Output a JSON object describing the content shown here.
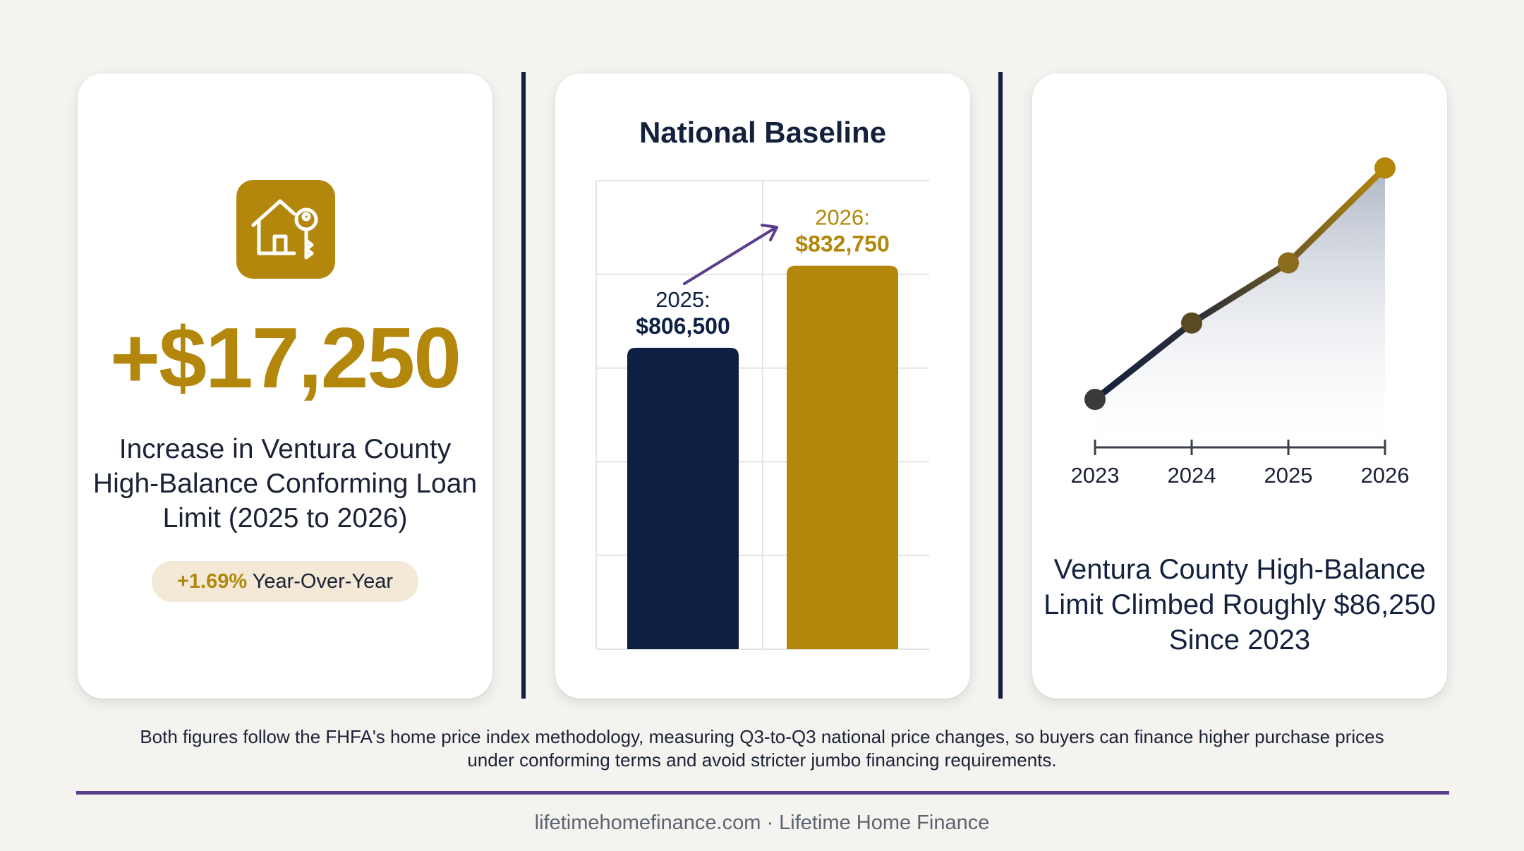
{
  "colors": {
    "gold": "#b3870c",
    "navy": "#0d1f42",
    "purple": "#5b3e8c",
    "pill_bg": "#f3e9d6",
    "background": "#f4f3f0"
  },
  "card1": {
    "icon": "house-key-icon",
    "big_number": "+$17,250",
    "description": "Increase in Ventura County High-Balance Conforming Loan Limit (2025 to 2026)",
    "pill_pct": "+1.69%",
    "pill_text": " Year-Over-Year"
  },
  "chart_data": [
    {
      "type": "bar",
      "title": "National Baseline",
      "categories": [
        "2025",
        "2026"
      ],
      "values": [
        806500,
        832750
      ],
      "data_labels": [
        {
          "year": "2025:",
          "value": "$806,500"
        },
        {
          "year": "2026:",
          "value": "$832,750"
        }
      ],
      "bar_colors": [
        "#0d1f42",
        "#b3870c"
      ],
      "ylim": [
        710000,
        860000
      ],
      "grid": true,
      "arrow": "trend-up"
    },
    {
      "type": "area",
      "title": "Ventura County High-Balance Limit Climbed Roughly $86,250 Since 2023",
      "x": [
        "2023",
        "2024",
        "2025",
        "2026"
      ],
      "values": [
        0,
        0.33,
        0.59,
        1.0
      ],
      "value_note": "relative position, no y-axis printed",
      "line_color_start": "#14213d",
      "line_color_end": "#b3870c",
      "ylim": [
        0,
        1
      ]
    }
  ],
  "footnote": "Both figures follow the FHFA's home price index methodology, measuring Q3-to-Q3 national price changes, so buyers can finance higher purchase prices under conforming terms and avoid stricter jumbo financing requirements.",
  "footer": "lifetimehomefinance.com · Lifetime Home Finance"
}
